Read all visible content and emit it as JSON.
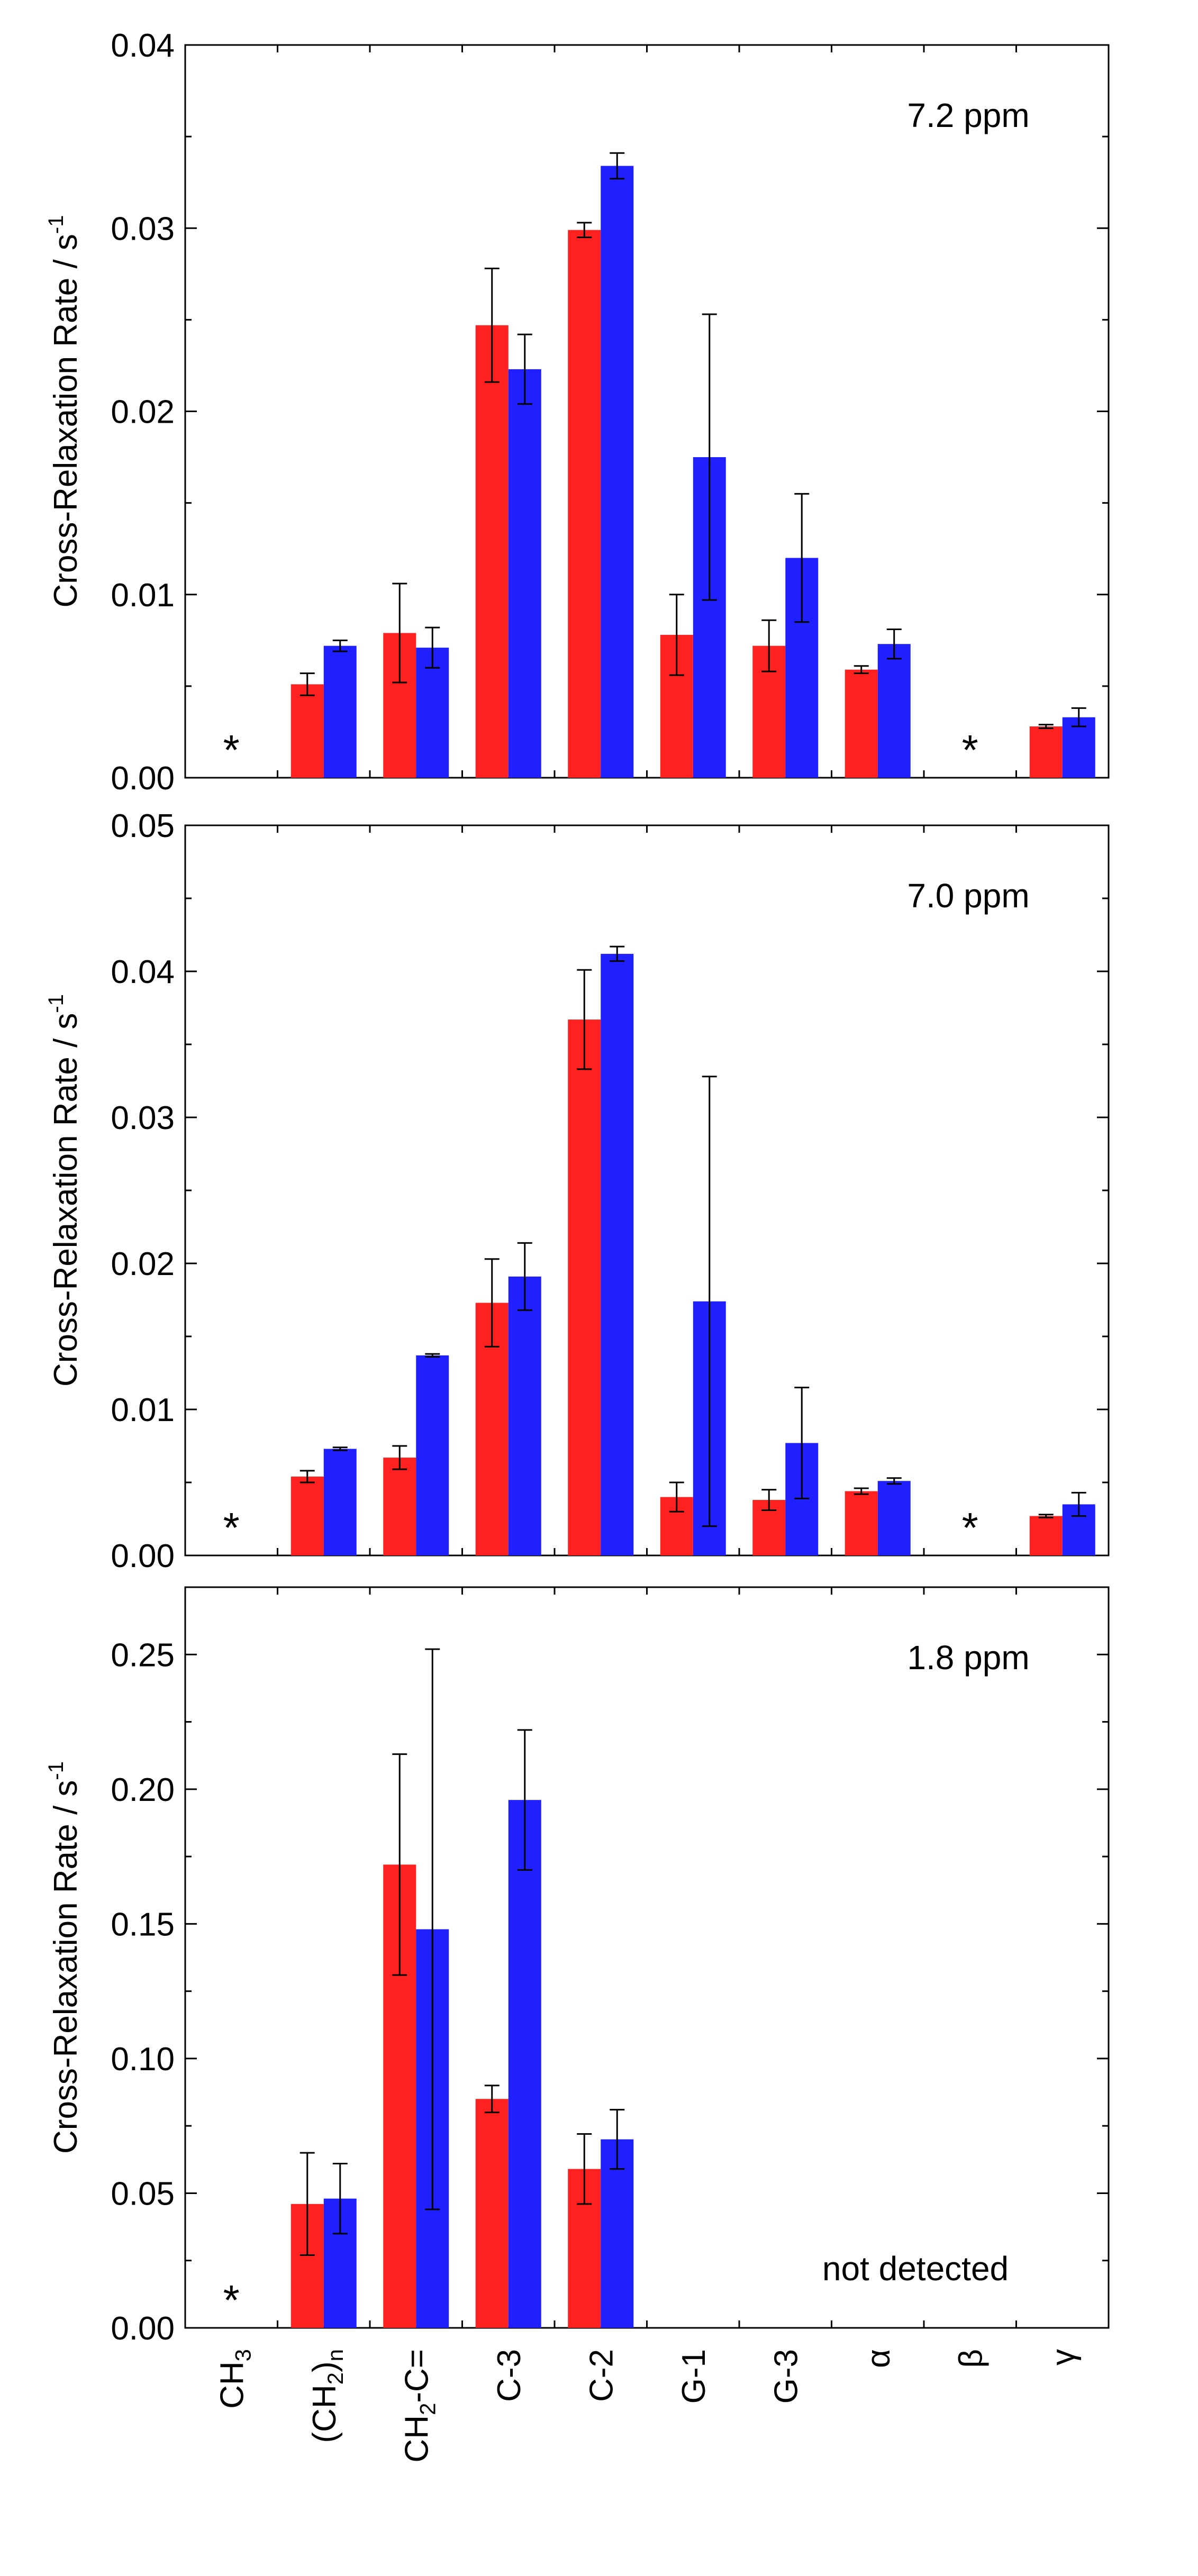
{
  "chart_data": [
    {
      "type": "bar",
      "annotation": "7.2 ppm",
      "ylabel": "Cross-Relaxation Rate / s",
      "ylabel_superscript": "-1",
      "ylim": [
        0,
        0.04
      ],
      "yticks": [
        "0.00",
        "0.01",
        "0.02",
        "0.03",
        "0.04"
      ],
      "categories": [
        "CH3",
        "(CH2)n",
        "CH2-C=",
        "C-3",
        "C-2",
        "G-1",
        "G-3",
        "α",
        "β",
        "γ"
      ],
      "series": [
        {
          "name": "red",
          "color": "#ff2020",
          "values": [
            null,
            0.0051,
            0.0079,
            0.0247,
            0.0299,
            0.0078,
            0.0072,
            0.0059,
            null,
            0.0028
          ],
          "errors": [
            null,
            0.0006,
            0.0027,
            0.0031,
            0.0004,
            0.0022,
            0.0014,
            0.0002,
            null,
            0.0001
          ]
        },
        {
          "name": "blue",
          "color": "#2020ff",
          "values": [
            null,
            0.0072,
            0.0071,
            0.0223,
            0.0334,
            0.0175,
            0.012,
            0.0073,
            null,
            0.0033
          ],
          "errors": [
            null,
            0.0003,
            0.0011,
            0.0019,
            0.0007,
            0.0078,
            0.0035,
            0.0008,
            null,
            0.0005
          ]
        }
      ],
      "markers": [
        {
          "category_index": 0,
          "text": "*"
        },
        {
          "category_index": 8,
          "text": "*"
        }
      ]
    },
    {
      "type": "bar",
      "annotation": "7.0 ppm",
      "ylabel": "Cross-Relaxation Rate / s",
      "ylabel_superscript": "-1",
      "ylim": [
        0,
        0.05
      ],
      "yticks": [
        "0.00",
        "0.01",
        "0.02",
        "0.03",
        "0.04",
        "0.05"
      ],
      "categories": [
        "CH3",
        "(CH2)n",
        "CH2-C=",
        "C-3",
        "C-2",
        "G-1",
        "G-3",
        "α",
        "β",
        "γ"
      ],
      "series": [
        {
          "name": "red",
          "color": "#ff2020",
          "values": [
            null,
            0.0054,
            0.0067,
            0.0173,
            0.0367,
            0.004,
            0.0038,
            0.0044,
            null,
            0.0027
          ],
          "errors": [
            null,
            0.0004,
            0.0008,
            0.003,
            0.0034,
            0.001,
            0.0007,
            0.0002,
            null,
            0.0001
          ]
        },
        {
          "name": "blue",
          "color": "#2020ff",
          "values": [
            null,
            0.0073,
            0.0137,
            0.0191,
            0.0412,
            0.0174,
            0.0077,
            0.0051,
            null,
            0.0035
          ],
          "errors": [
            null,
            0.0001,
            0.0001,
            0.0023,
            0.0005,
            0.0154,
            0.0038,
            0.0002,
            null,
            0.0008
          ]
        }
      ],
      "markers": [
        {
          "category_index": 0,
          "text": "*"
        },
        {
          "category_index": 8,
          "text": "*"
        }
      ]
    },
    {
      "type": "bar",
      "annotation": "1.8 ppm",
      "note": "not detected",
      "ylabel": "Cross-Relaxation Rate / s",
      "ylabel_superscript": "-1",
      "ylim": [
        0,
        0.275
      ],
      "yticks": [
        "0.00",
        "0.05",
        "0.10",
        "0.15",
        "0.20",
        "0.25"
      ],
      "categories": [
        "CH3",
        "(CH2)n",
        "CH2-C=",
        "C-3",
        "C-2",
        "G-1",
        "G-3",
        "α",
        "β",
        "γ"
      ],
      "series": [
        {
          "name": "red",
          "color": "#ff2020",
          "values": [
            null,
            0.046,
            0.172,
            0.085,
            0.059,
            null,
            null,
            null,
            null,
            null
          ],
          "errors": [
            null,
            0.019,
            0.041,
            0.005,
            0.013,
            null,
            null,
            null,
            null,
            null
          ]
        },
        {
          "name": "blue",
          "color": "#2020ff",
          "values": [
            null,
            0.048,
            0.148,
            0.196,
            0.07,
            null,
            null,
            null,
            null,
            null
          ],
          "errors": [
            null,
            0.013,
            0.104,
            0.026,
            0.011,
            null,
            null,
            null,
            null,
            null
          ]
        }
      ],
      "markers": [
        {
          "category_index": 0,
          "text": "*"
        }
      ]
    }
  ],
  "x_tick_labels": [
    {
      "base": "CH",
      "sub": "3",
      "rest": ""
    },
    {
      "base": "(CH",
      "sub": "2",
      "rest": ")",
      "sub2": "n"
    },
    {
      "base": "CH",
      "sub": "2",
      "rest": "-C="
    },
    {
      "base": "C-3"
    },
    {
      "base": "C-2"
    },
    {
      "base": "G-1"
    },
    {
      "base": "G-3"
    },
    {
      "base": "α"
    },
    {
      "base": "β"
    },
    {
      "base": "γ"
    }
  ]
}
